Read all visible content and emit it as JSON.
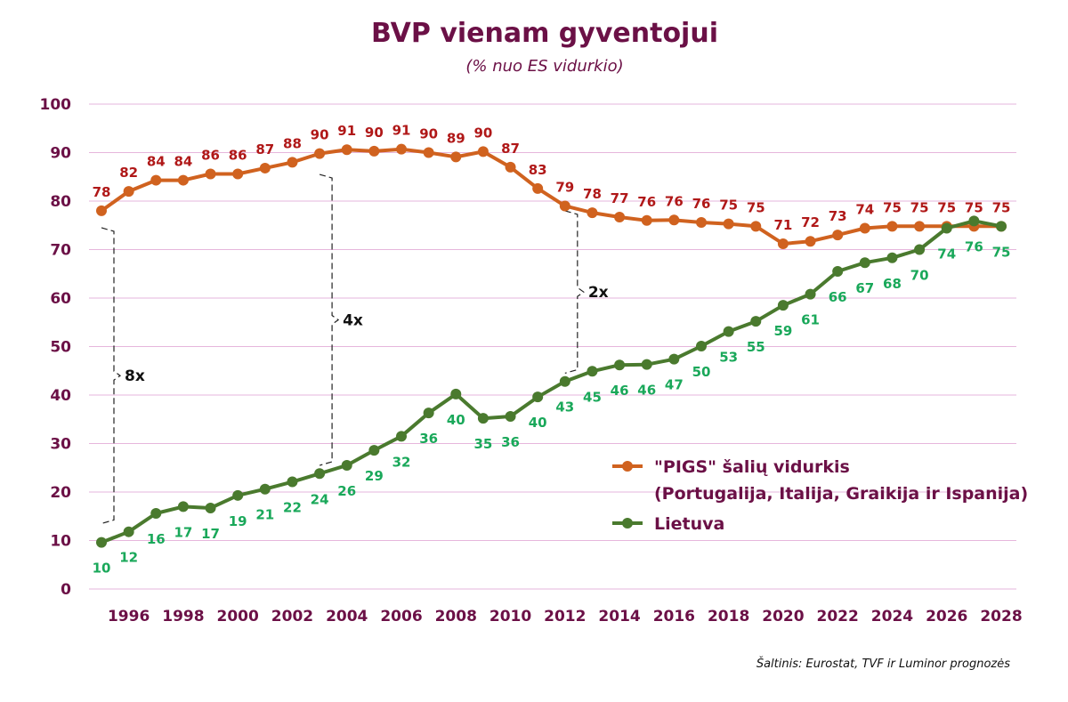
{
  "chart_data": {
    "type": "line",
    "title": "BVP vienam gyventojui",
    "subtitle": "(% nuo ES vidurkio)",
    "xlabel": "",
    "ylabel": "",
    "ylim": [
      0,
      100
    ],
    "yticks": [
      0,
      10,
      20,
      30,
      40,
      50,
      60,
      70,
      80,
      90,
      100
    ],
    "xlim": [
      1995,
      2028
    ],
    "xticks": [
      1996,
      1998,
      2000,
      2002,
      2004,
      2006,
      2008,
      2010,
      2012,
      2014,
      2016,
      2018,
      2020,
      2022,
      2024,
      2026,
      2028
    ],
    "grid": true,
    "legend_position": "right",
    "x": [
      1995,
      1996,
      1997,
      1998,
      1999,
      2000,
      2001,
      2002,
      2003,
      2004,
      2005,
      2006,
      2007,
      2008,
      2009,
      2010,
      2011,
      2012,
      2013,
      2014,
      2015,
      2016,
      2017,
      2018,
      2019,
      2020,
      2021,
      2022,
      2023,
      2024,
      2025,
      2026,
      2027,
      2028
    ],
    "series": [
      {
        "key": "pigs",
        "legend_line1": "\"PIGS\" šalių vidurkis",
        "legend_line2": "(Portugalija, Italija, Graikija ir Ispanija)",
        "color": "#d0621f",
        "label_color": "#b01818",
        "values": [
          78,
          82,
          84.3,
          84.3,
          85.6,
          85.6,
          86.8,
          88,
          89.8,
          90.6,
          90.3,
          90.7,
          90,
          89.1,
          90.2,
          87,
          82.6,
          79,
          77.6,
          76.7,
          76,
          76.1,
          75.6,
          75.3,
          74.8,
          71.2,
          71.7,
          73,
          74.4,
          74.8,
          74.8,
          74.8,
          74.8,
          74.8
        ],
        "labels": [
          "78",
          "82",
          "84",
          "84",
          "86",
          "86",
          "87",
          "88",
          "90",
          "91",
          "90",
          "91",
          "90",
          "89",
          "90",
          "87",
          "83",
          "79",
          "78",
          "77",
          "76",
          "76",
          "76",
          "75",
          "75",
          "71",
          "72",
          "73",
          "74",
          "75",
          "75",
          "75",
          "75",
          "75"
        ]
      },
      {
        "key": "lt",
        "legend_line1": "Lietuva",
        "color": "#4a7a2e",
        "label_color": "#1aa85a",
        "values": [
          9.6,
          11.8,
          15.6,
          17,
          16.7,
          19.3,
          20.6,
          22.1,
          23.8,
          25.5,
          28.6,
          31.5,
          36.3,
          40.2,
          35.2,
          35.6,
          39.6,
          42.8,
          44.9,
          46.2,
          46.3,
          47.4,
          50.1,
          53.1,
          55.2,
          58.5,
          60.8,
          65.5,
          67.3,
          68.3,
          70,
          74.4,
          75.9,
          74.8
        ],
        "labels": [
          "10",
          "12",
          "16",
          "17",
          "17",
          "19",
          "21",
          "22",
          "24",
          "26",
          "29",
          "32",
          "36",
          "40",
          "35",
          "36",
          "40",
          "43",
          "45",
          "46",
          "46",
          "47",
          "50",
          "53",
          "55",
          "59",
          "61",
          "66",
          "67",
          "68",
          "70",
          "74",
          "76",
          "75"
        ]
      }
    ],
    "annotations": [
      {
        "text": "8x",
        "x": 1995,
        "y_low": 13.5,
        "y_high": 74.5
      },
      {
        "text": "4x",
        "x": 2003,
        "y_low": 25.5,
        "y_high": 85.5
      },
      {
        "text": "2x",
        "x": 2012,
        "y_low": 44.5,
        "y_high": 78.0
      }
    ],
    "source": "Šaltinis: Eurostat, TVF ir Luminor prognozės"
  }
}
